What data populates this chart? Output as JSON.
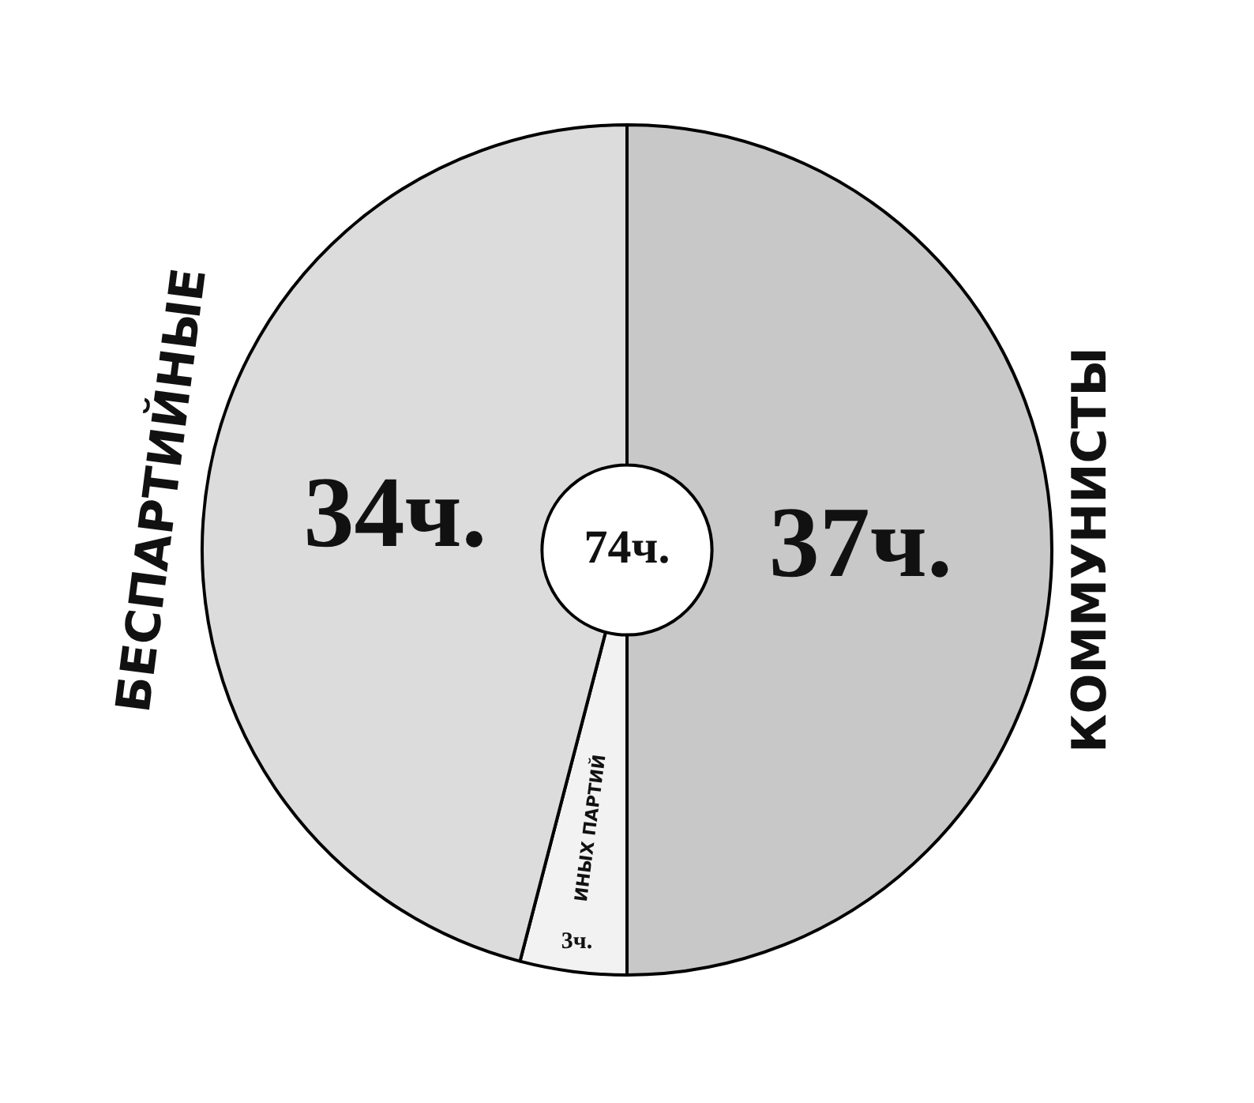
{
  "chart_data": {
    "type": "donut",
    "categories": [
      "КОММУНИСТЫ",
      "ИНЫХ ПАРТИЙ",
      "БЕСПАРТИЙНЫЕ"
    ],
    "values": [
      37,
      3,
      34
    ],
    "value_labels": [
      "37ч.",
      "3ч.",
      "34ч."
    ],
    "colors": [
      "#c8c8c8",
      "#f2f2f2",
      "#dcdcdc"
    ],
    "annotations": [
      "74ч."
    ],
    "legend": false
  }
}
